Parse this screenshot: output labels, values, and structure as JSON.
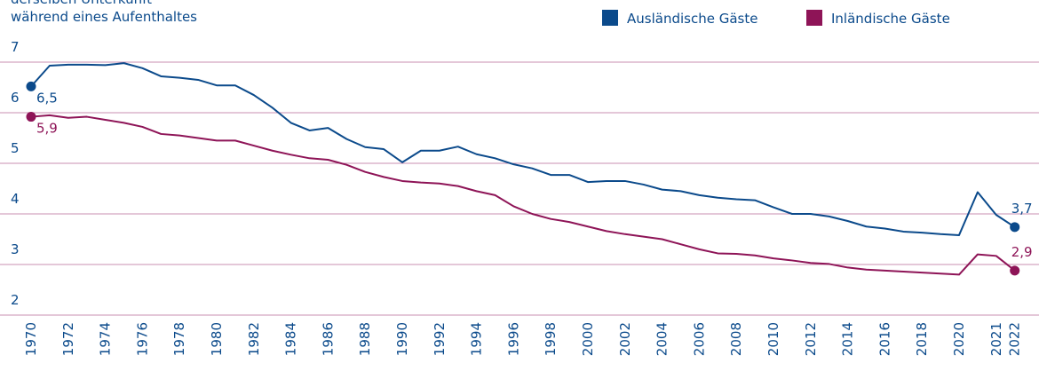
{
  "chart_data": {
    "type": "line",
    "title_lines": [
      "derselben Unterkunft",
      "während eines Aufenthaltes"
    ],
    "categories": [
      "1970",
      null,
      "1972",
      null,
      "1974",
      null,
      "1976",
      null,
      "1978",
      null,
      "1980",
      null,
      "1982",
      null,
      "1984",
      null,
      "1986",
      null,
      "1988",
      null,
      "1990",
      null,
      "1992",
      null,
      "1994",
      null,
      "1996",
      null,
      "1998",
      null,
      "2000",
      null,
      "2002",
      null,
      "2004",
      null,
      "2006",
      null,
      "2008",
      null,
      "2010",
      null,
      "2012",
      null,
      "2014",
      null,
      "2016",
      null,
      "2018",
      null,
      "2020",
      null,
      "2021",
      "2022"
    ],
    "series": [
      {
        "name": "Ausländische Gäste",
        "color": "#0b4a8b",
        "values": [
          6.52,
          6.93,
          6.95,
          6.95,
          6.94,
          6.98,
          6.88,
          6.72,
          6.69,
          6.65,
          6.54,
          6.54,
          6.35,
          6.1,
          5.8,
          5.65,
          5.7,
          5.48,
          5.32,
          5.28,
          5.02,
          5.25,
          5.25,
          5.33,
          5.18,
          5.1,
          4.98,
          4.9,
          4.77,
          4.77,
          4.63,
          4.65,
          4.65,
          4.58,
          4.48,
          4.45,
          4.37,
          4.32,
          4.29,
          4.27,
          4.13,
          4.0,
          4.0,
          3.95,
          3.86,
          3.75,
          3.71,
          3.65,
          3.63,
          3.6,
          3.58,
          4.43,
          3.98,
          3.74
        ],
        "value_labels": [
          "6,5",
          null,
          null,
          null,
          null,
          null,
          null,
          null,
          null,
          null,
          null,
          null,
          null,
          null,
          null,
          null,
          null,
          null,
          null,
          null,
          null,
          null,
          null,
          null,
          null,
          null,
          null,
          null,
          null,
          null,
          null,
          null,
          null,
          null,
          null,
          null,
          null,
          null,
          null,
          null,
          null,
          null,
          null,
          null,
          null,
          null,
          null,
          null,
          null,
          null,
          null,
          null,
          null,
          "3,7"
        ]
      },
      {
        "name": "Inländische Gäste",
        "color": "#8e1457",
        "values": [
          5.92,
          5.95,
          5.9,
          5.92,
          5.86,
          5.8,
          5.72,
          5.58,
          5.55,
          5.5,
          5.45,
          5.45,
          5.35,
          5.25,
          5.17,
          5.1,
          5.07,
          4.97,
          4.83,
          4.73,
          4.65,
          4.62,
          4.6,
          4.55,
          4.45,
          4.37,
          4.15,
          4.0,
          3.9,
          3.84,
          3.75,
          3.66,
          3.6,
          3.55,
          3.5,
          3.4,
          3.3,
          3.22,
          3.21,
          3.18,
          3.12,
          3.08,
          3.03,
          3.01,
          2.94,
          2.9,
          2.88,
          2.86,
          2.84,
          2.82,
          2.8,
          3.2,
          3.17,
          2.88
        ],
        "value_labels": [
          "5,9",
          null,
          null,
          null,
          null,
          null,
          null,
          null,
          null,
          null,
          null,
          null,
          null,
          null,
          null,
          null,
          null,
          null,
          null,
          null,
          null,
          null,
          null,
          null,
          null,
          null,
          null,
          null,
          null,
          null,
          null,
          null,
          null,
          null,
          null,
          null,
          null,
          null,
          null,
          null,
          null,
          null,
          null,
          null,
          null,
          null,
          null,
          null,
          null,
          null,
          null,
          null,
          null,
          "2,9"
        ]
      }
    ],
    "ylim": [
      2,
      7
    ],
    "yticks": [
      2,
      3,
      4,
      5,
      6,
      7
    ],
    "grid": true,
    "legend": "top-right"
  }
}
